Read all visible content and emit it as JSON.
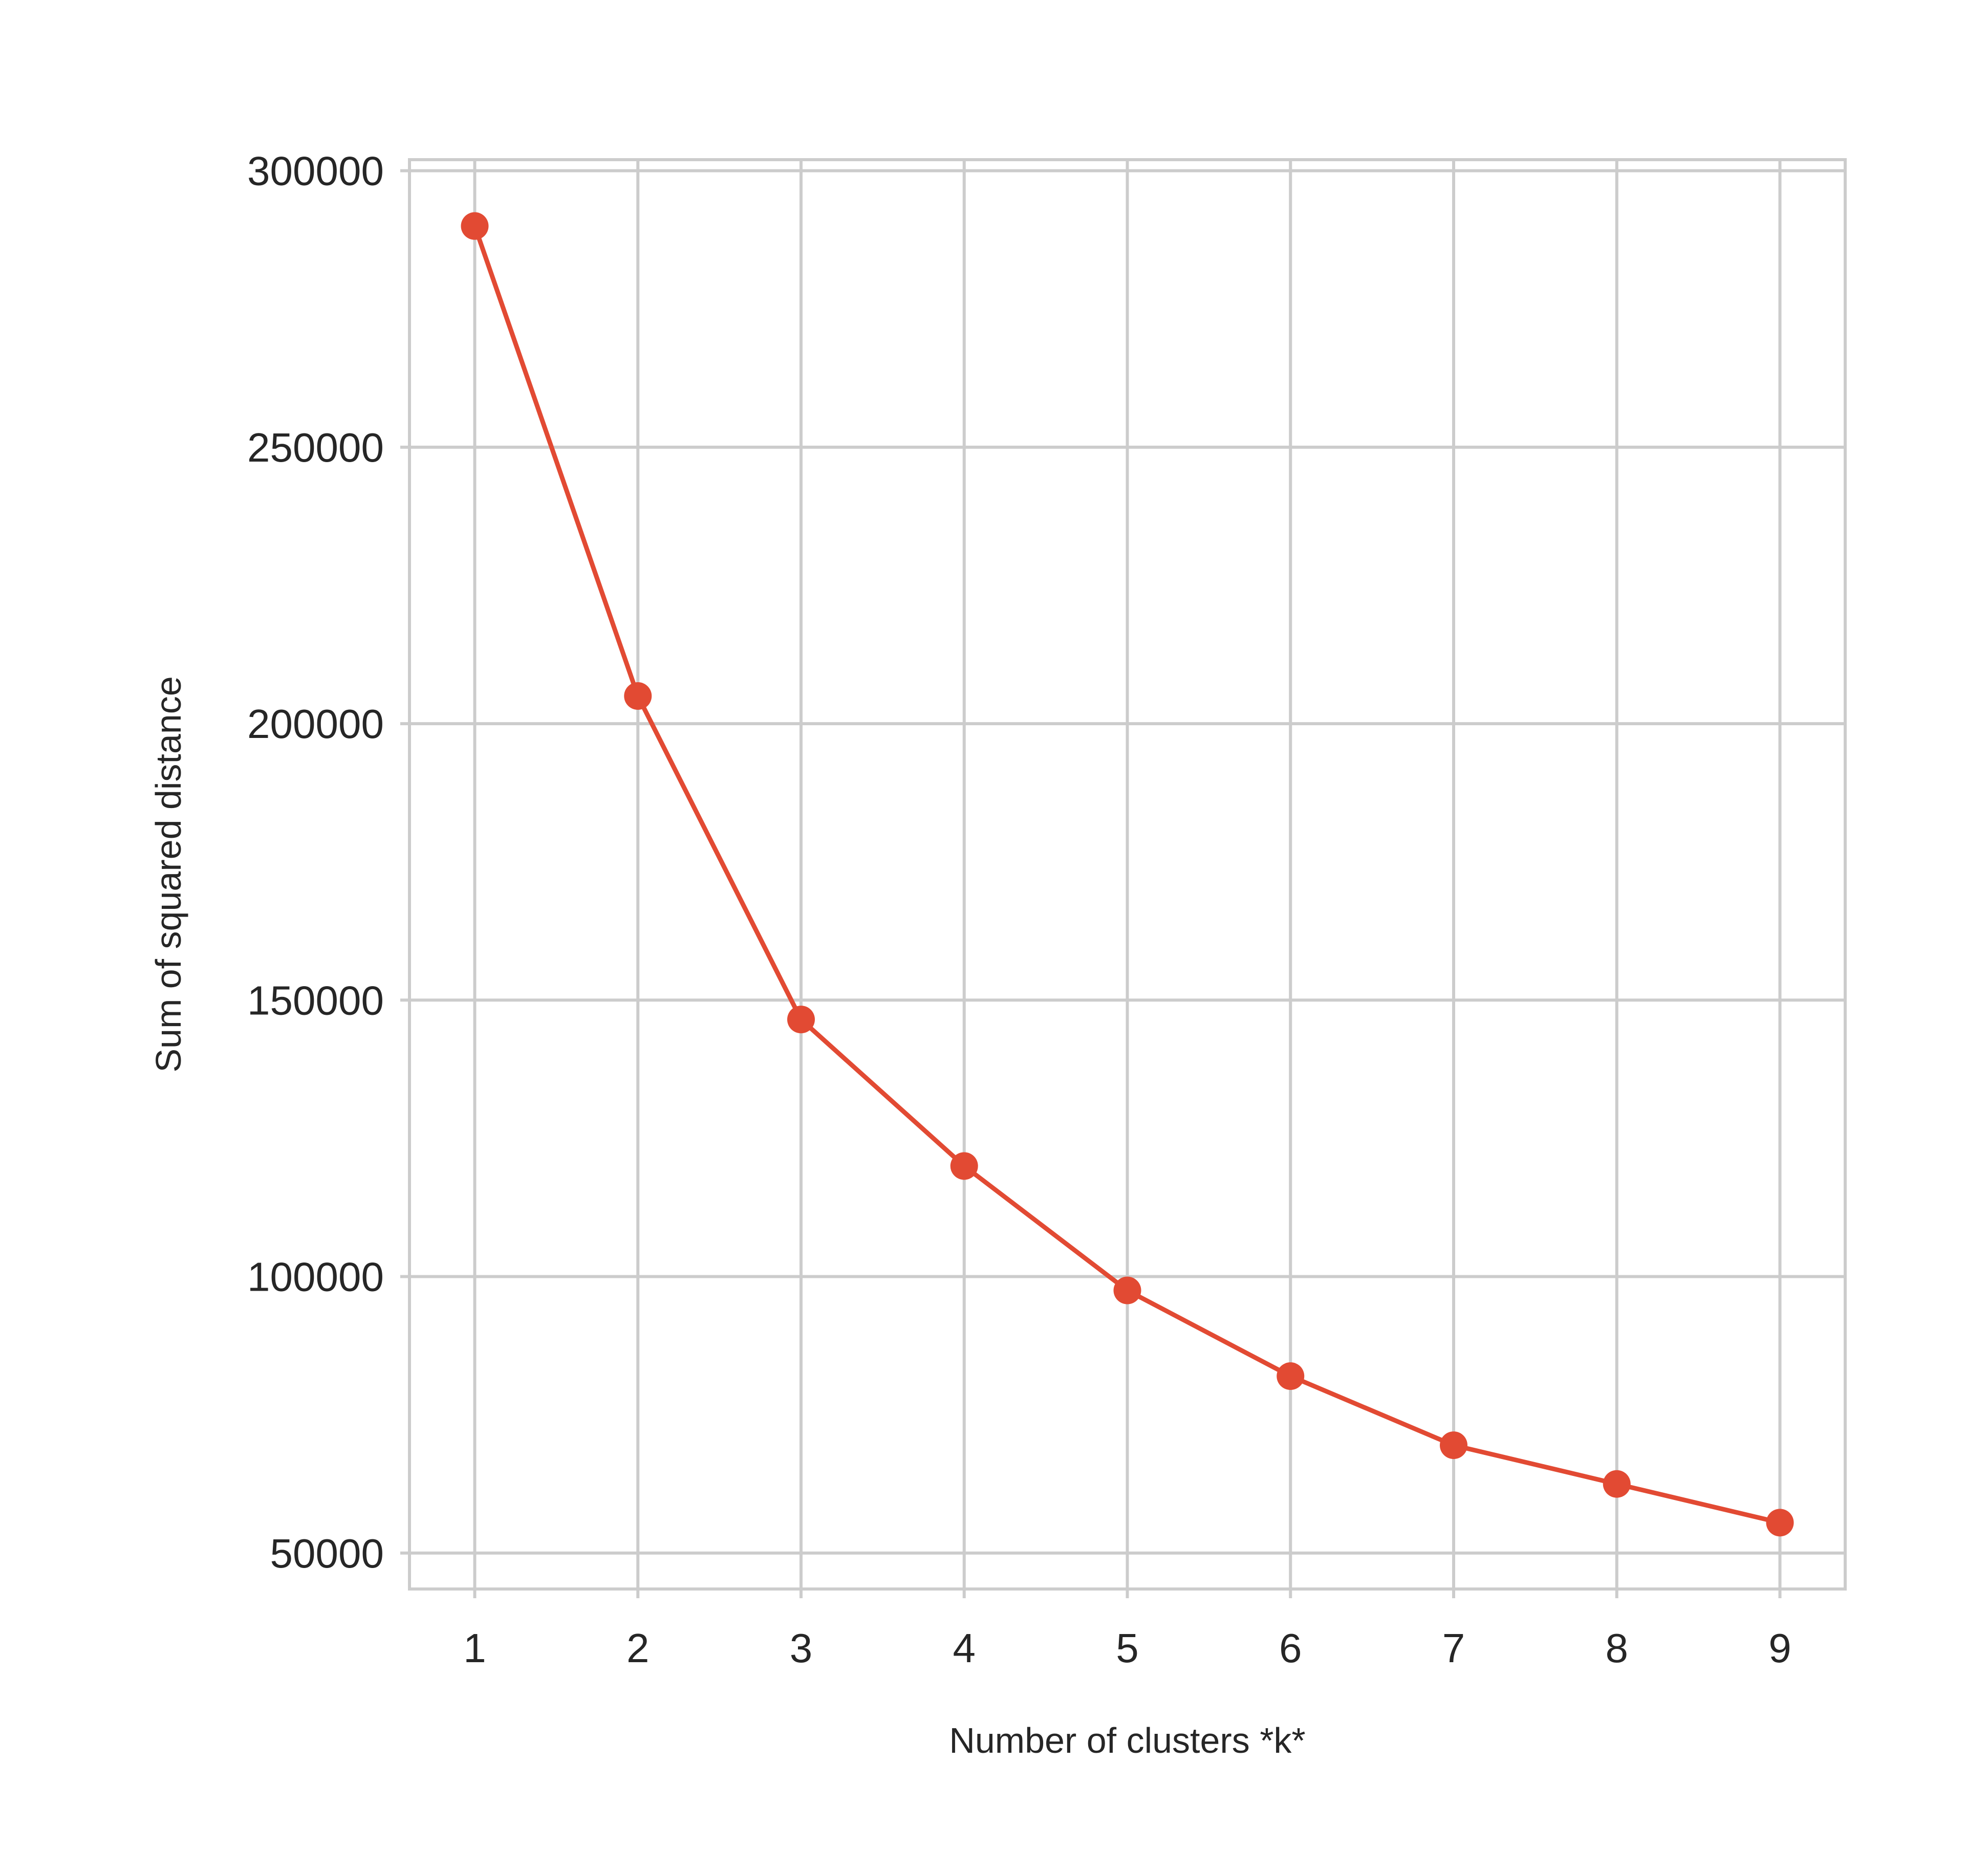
{
  "chart_data": {
    "type": "line",
    "title": "",
    "xlabel": "Number of clusters *k*",
    "ylabel": "Sum of squared distance",
    "x": [
      1,
      2,
      3,
      4,
      5,
      6,
      7,
      8,
      9
    ],
    "series": [
      {
        "values": [
          290000,
          205000,
          146500,
          120000,
          97500,
          82000,
          69500,
          62500,
          55500
        ],
        "color": "#e24a33",
        "marker": "circle"
      }
    ],
    "xlim": [
      0.6,
      9.4
    ],
    "ylim": [
      43500,
      302000
    ],
    "xticks": [
      "1",
      "2",
      "3",
      "4",
      "5",
      "6",
      "7",
      "8",
      "9"
    ],
    "yticks": [
      "50000",
      "100000",
      "150000",
      "200000",
      "250000",
      "300000"
    ],
    "grid": true,
    "grid_color": "#cccccc",
    "background": "#ffffff",
    "legend": "none"
  }
}
